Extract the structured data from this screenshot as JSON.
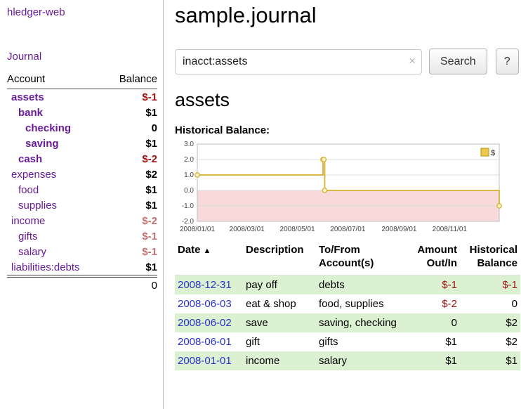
{
  "app": {
    "title": "hledger-web",
    "nav_journal": "Journal"
  },
  "colors": {
    "link_purple": "#6a1b9a",
    "date_link_blue": "#2633cc",
    "negative_red": "#a11313",
    "negative_muted": "#c47171",
    "row_highlight_green": "#dcf0d2"
  },
  "sidebar": {
    "col_account": "Account",
    "col_balance": "Balance",
    "accounts": [
      {
        "name": "assets",
        "balance": "$-1",
        "indent": 0,
        "bold": true,
        "neg": true
      },
      {
        "name": "bank",
        "balance": "$1",
        "indent": 1,
        "bold": true,
        "neg": false
      },
      {
        "name": "checking",
        "balance": "0",
        "indent": 2,
        "bold": true,
        "neg": false
      },
      {
        "name": "saving",
        "balance": "$1",
        "indent": 2,
        "bold": true,
        "neg": false
      },
      {
        "name": "cash",
        "balance": "$-2",
        "indent": 1,
        "bold": true,
        "neg": true
      },
      {
        "name": "expenses",
        "balance": "$2",
        "indent": 0,
        "bold": false,
        "neg": false
      },
      {
        "name": "food",
        "balance": "$1",
        "indent": 1,
        "bold": false,
        "neg": false
      },
      {
        "name": "supplies",
        "balance": "$1",
        "indent": 1,
        "bold": false,
        "neg": false
      },
      {
        "name": "income",
        "balance": "$-2",
        "indent": 0,
        "bold": false,
        "neg": true
      },
      {
        "name": "gifts",
        "balance": "$-1",
        "indent": 1,
        "bold": false,
        "neg": true
      },
      {
        "name": "salary",
        "balance": "$-1",
        "indent": 1,
        "bold": false,
        "neg": true
      },
      {
        "name": "liabilities:debts",
        "balance": "$1",
        "indent": 0,
        "bold": false,
        "neg": false
      }
    ],
    "total": "0"
  },
  "header": {
    "title": "sample.journal"
  },
  "search": {
    "value": "inacct:assets",
    "clear_label": "×",
    "button": "Search",
    "help": "?"
  },
  "account_page": {
    "heading": "assets",
    "chart_label": "Historical Balance:"
  },
  "chart_data": {
    "type": "line",
    "title": "Historical Balance:",
    "step": true,
    "series": [
      {
        "name": "$",
        "color": "#d9b843",
        "points": [
          [
            "2008-01-01",
            1
          ],
          [
            "2008-06-01",
            2
          ],
          [
            "2008-06-02",
            2
          ],
          [
            "2008-06-03",
            0
          ],
          [
            "2008-12-31",
            -1
          ]
        ]
      }
    ],
    "ylim": [
      -2.0,
      3.0
    ],
    "yticks": [
      3.0,
      2.0,
      1.0,
      0.0,
      -1.0,
      -2.0
    ],
    "xticks": [
      "2008/01/01",
      "2008/03/01",
      "2008/05/01",
      "2008/07/01",
      "2008/09/01",
      "2008/11/01"
    ],
    "x_start": "2008-01-01",
    "x_end": "2008-12-31",
    "negative_fill": "#f9dada",
    "grid": true,
    "legend": "$",
    "legend_position": "top-right",
    "legend_swatch_fill": "#ecc94b",
    "legend_swatch_border": "#b7950b"
  },
  "register": {
    "columns": [
      {
        "line1": "Date",
        "line2": "",
        "sort": "▲"
      },
      {
        "line1": "Description",
        "line2": ""
      },
      {
        "line1": "To/From",
        "line2": "Account(s)"
      },
      {
        "line1": "Amount",
        "line2": "Out/In"
      },
      {
        "line1": "Historical",
        "line2": "Balance"
      }
    ],
    "rows": [
      {
        "date": "2008-12-31",
        "description": "pay off",
        "accounts": "debts",
        "amount": "$-1",
        "amount_neg": true,
        "balance": "$-1",
        "balance_neg": true,
        "highlight": true
      },
      {
        "date": "2008-06-03",
        "description": "eat & shop",
        "accounts": "food, supplies",
        "amount": "$-2",
        "amount_neg": true,
        "balance": "0",
        "balance_neg": false,
        "highlight": false
      },
      {
        "date": "2008-06-02",
        "description": "save",
        "accounts": "saving, checking",
        "amount": "0",
        "amount_neg": false,
        "balance": "$2",
        "balance_neg": false,
        "highlight": true
      },
      {
        "date": "2008-06-01",
        "description": "gift",
        "accounts": "gifts",
        "amount": "$1",
        "amount_neg": false,
        "balance": "$2",
        "balance_neg": false,
        "highlight": false
      },
      {
        "date": "2008-01-01",
        "description": "income",
        "accounts": "salary",
        "amount": "$1",
        "amount_neg": false,
        "balance": "$1",
        "balance_neg": false,
        "highlight": true
      }
    ]
  }
}
